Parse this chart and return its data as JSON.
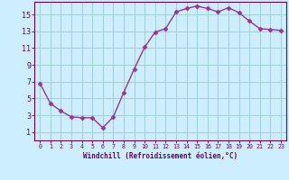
{
  "x": [
    0,
    1,
    2,
    3,
    4,
    5,
    6,
    7,
    8,
    9,
    10,
    11,
    12,
    13,
    14,
    15,
    16,
    17,
    18,
    19,
    20,
    21,
    22,
    23
  ],
  "y": [
    6.8,
    4.4,
    3.5,
    2.8,
    2.7,
    2.7,
    1.5,
    2.8,
    5.7,
    8.5,
    11.1,
    12.9,
    13.3,
    15.3,
    15.7,
    16.0,
    15.7,
    15.3,
    15.8,
    15.2,
    14.2,
    13.3,
    13.2,
    13.1
  ],
  "line_color": "#993399",
  "marker": "D",
  "marker_size": 2.5,
  "bg_color": "#cceeff",
  "grid_color": "#99cccc",
  "xlabel": "Windchill (Refroidissement éolien,°C)",
  "xlim": [
    -0.5,
    23.5
  ],
  "ylim": [
    0,
    16.5
  ],
  "yticks": [
    1,
    3,
    5,
    7,
    9,
    11,
    13,
    15
  ],
  "xticks": [
    0,
    1,
    2,
    3,
    4,
    5,
    6,
    7,
    8,
    9,
    10,
    11,
    12,
    13,
    14,
    15,
    16,
    17,
    18,
    19,
    20,
    21,
    22,
    23
  ],
  "xtick_labels": [
    "0",
    "1",
    "2",
    "3",
    "4",
    "5",
    "6",
    "7",
    "8",
    "9",
    "10",
    "11",
    "12",
    "13",
    "14",
    "15",
    "16",
    "17",
    "18",
    "19",
    "20",
    "21",
    "22",
    "23"
  ],
  "label_color": "#660066",
  "tick_color": "#660066",
  "spine_color": "#660066",
  "xlabel_fontsize": 5.5,
  "ytick_fontsize": 6,
  "xtick_fontsize": 4.8
}
